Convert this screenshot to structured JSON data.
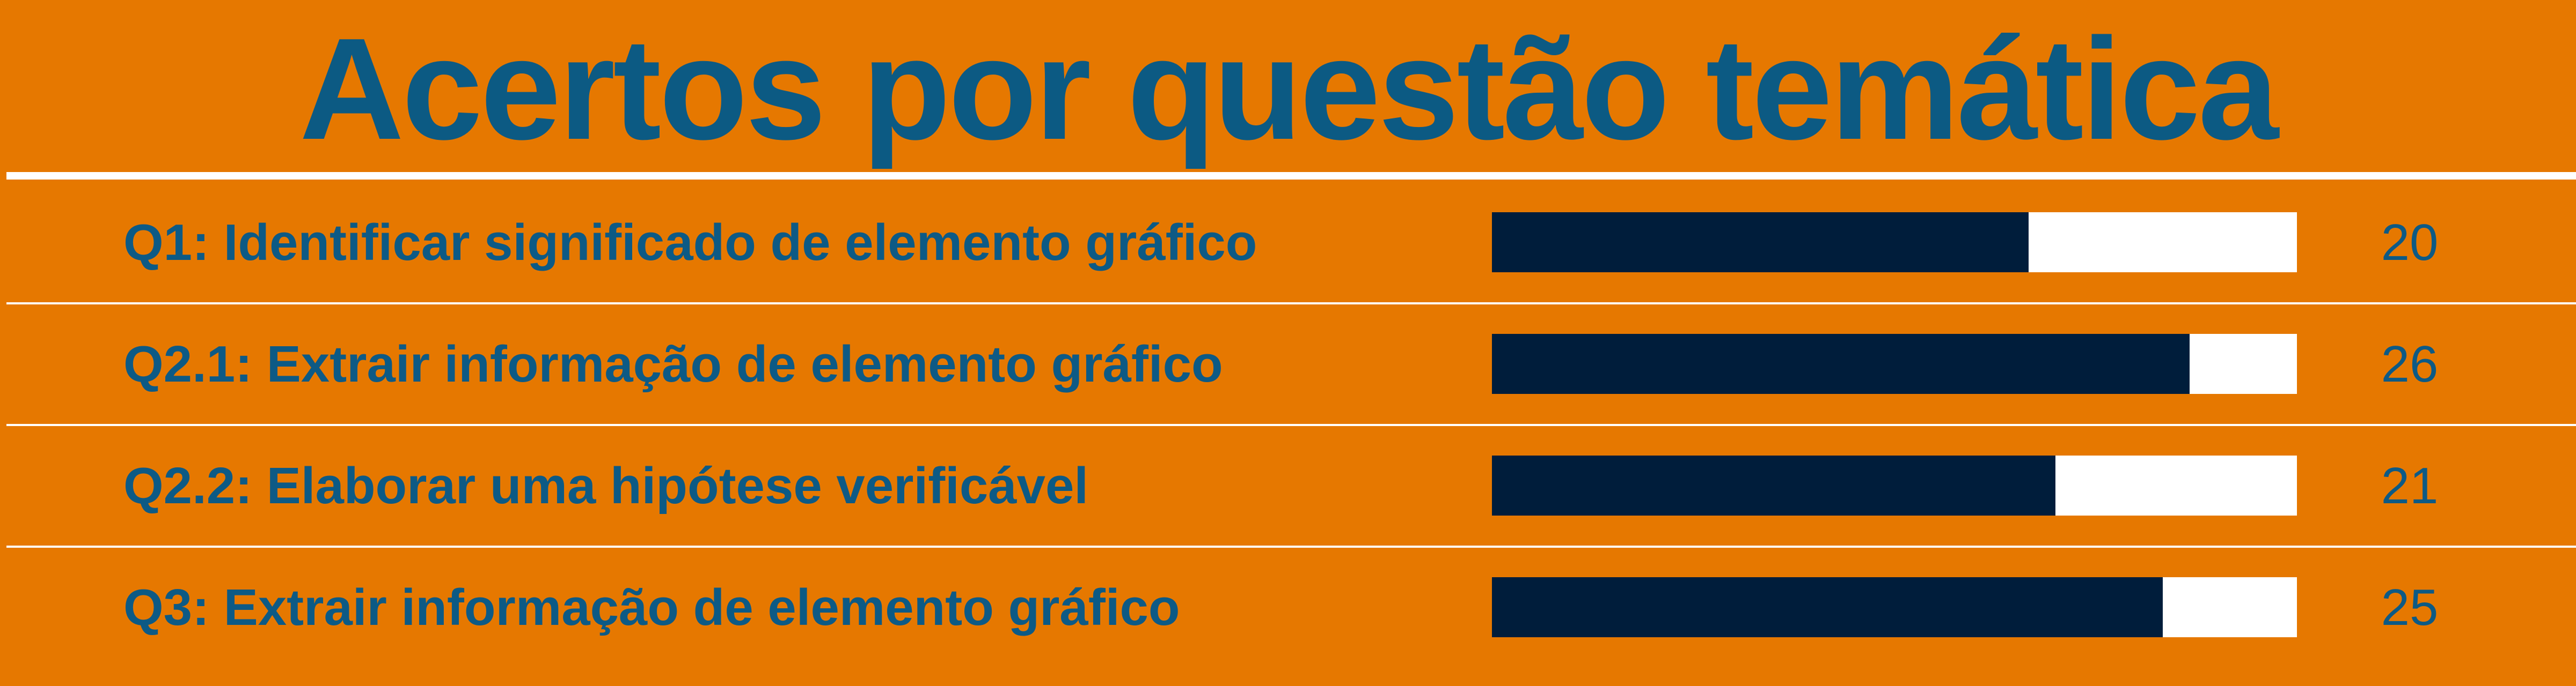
{
  "chart_data": {
    "type": "bar",
    "title": "Acertos por questão temática",
    "categories": [
      "Q1: Identificar significado de elemento gráfico",
      "Q2.1: Extrair informação de elemento gráfico",
      "Q2.2: Elaborar uma hipótese verificável",
      "Q3: Extrair informação de elemento gráfico"
    ],
    "values": [
      20,
      26,
      21,
      25
    ],
    "value_labels": [
      "20",
      "26",
      "21",
      "25"
    ],
    "xlim": [
      0,
      30
    ],
    "orientation": "horizontal",
    "legend": "none",
    "grid": false
  },
  "colors": {
    "background": "#e67800",
    "bar": "#001d3b",
    "track": "#ffffff",
    "text": "#0d5a85",
    "divider": "#ffffff"
  }
}
